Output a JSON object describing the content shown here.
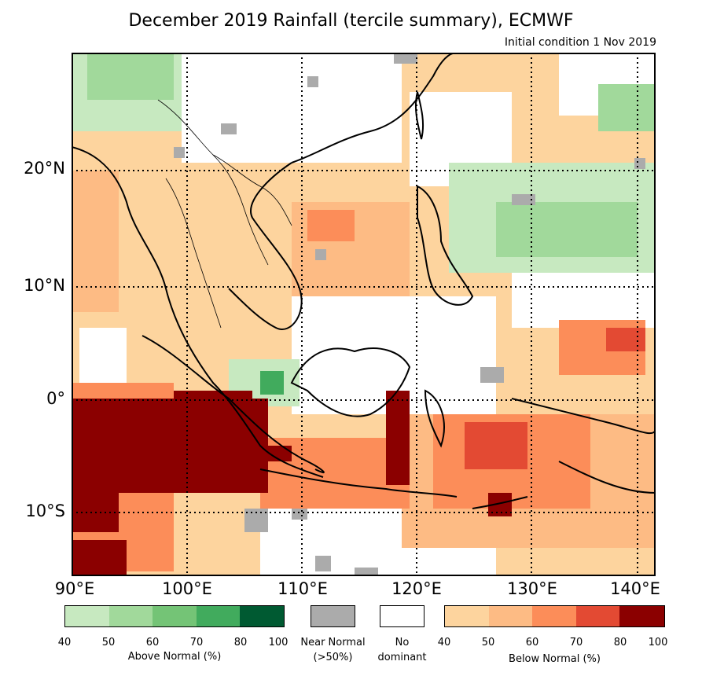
{
  "title": "December 2019 Rainfall (tercile summary), ECMWF",
  "subtitle": "Initial condition 1 Nov 2019",
  "lat_labels": [
    "20°N",
    "10°N",
    "0°",
    "10°S"
  ],
  "lon_labels": [
    "90°E",
    "100°E",
    "110°E",
    "120°E",
    "130°E",
    "140°E"
  ],
  "colors": {
    "above": [
      "#c7e9c0",
      "#a1d99b",
      "#74c476",
      "#41ab5d",
      "#005a32"
    ],
    "below": [
      "#fdd49e",
      "#fdbb84",
      "#fc8d59",
      "#e34a33",
      "#8b0000"
    ],
    "near": "#ababab",
    "none": "#ffffff"
  },
  "legend": {
    "above_label": "Above Normal (%)",
    "above_ticks": [
      "40",
      "50",
      "60",
      "70",
      "80",
      "100"
    ],
    "near_label_1": "Near Normal",
    "near_label_2": "(>50%)",
    "none_label_1": "No",
    "none_label_2": "dominant",
    "below_label": "Below Normal (%)",
    "below_ticks": [
      "40",
      "50",
      "60",
      "70",
      "80",
      "100"
    ]
  }
}
